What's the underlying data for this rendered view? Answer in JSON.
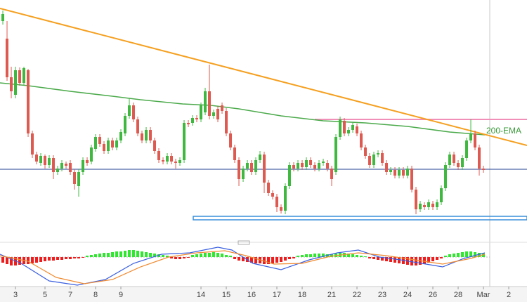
{
  "chart_data": {
    "type": "candlestick",
    "annotation": "200-EMA",
    "x": [
      0,
      1,
      2,
      3,
      4,
      5,
      6,
      7,
      8,
      9,
      10,
      11,
      12,
      13,
      14,
      15,
      16,
      17,
      18,
      19,
      20,
      21,
      22,
      23,
      24,
      25,
      26,
      27,
      28,
      29,
      30,
      31,
      32,
      33,
      34,
      35,
      36,
      37,
      38,
      39,
      40,
      41,
      42,
      43,
      44,
      45,
      46,
      47,
      48,
      49,
      50,
      51,
      52,
      53,
      54,
      55,
      56,
      57,
      58,
      59,
      60,
      61,
      62,
      63,
      64,
      65,
      66,
      67,
      68,
      69,
      70,
      71,
      72,
      73,
      74,
      75,
      76,
      77,
      78,
      79,
      80,
      81,
      82,
      83,
      84,
      85,
      86,
      87,
      88,
      89,
      90,
      91,
      92,
      93,
      94,
      95,
      96,
      97,
      98,
      99,
      100,
      101,
      102,
      103,
      104,
      105,
      106,
      107,
      108,
      109,
      110,
      111,
      112,
      113,
      114
    ],
    "open": [
      300,
      275,
      220,
      195,
      230,
      212,
      230,
      140,
      110,
      98,
      108,
      95,
      105,
      85,
      90,
      97,
      98,
      85,
      65,
      85,
      102,
      100,
      118,
      135,
      125,
      115,
      130,
      120,
      130,
      140,
      165,
      180,
      160,
      140,
      130,
      145,
      130,
      115,
      102,
      100,
      108,
      100,
      98,
      102,
      155,
      155,
      162,
      160,
      170,
      200,
      165,
      175,
      180,
      172,
      140,
      120,
      102,
      75,
      90,
      98,
      85,
      102,
      110,
      70,
      55,
      50,
      35,
      30,
      65,
      95,
      90,
      98,
      92,
      102,
      95,
      90,
      98,
      98,
      90,
      85,
      135,
      158,
      140,
      145,
      150,
      140,
      120,
      108,
      95,
      110,
      112,
      98,
      85,
      88,
      80,
      88,
      80,
      90,
      60,
      32,
      38,
      35,
      40,
      35,
      42,
      62,
      95,
      110,
      98,
      92,
      105,
      130,
      140,
      120,
      90
    ],
    "close": [
      310,
      220,
      200,
      230,
      212,
      233,
      140,
      110,
      100,
      108,
      95,
      105,
      85,
      90,
      98,
      94,
      85,
      68,
      85,
      102,
      98,
      120,
      135,
      125,
      115,
      130,
      120,
      130,
      142,
      165,
      180,
      160,
      140,
      130,
      145,
      130,
      115,
      102,
      100,
      108,
      100,
      98,
      102,
      155,
      153,
      162,
      160,
      180,
      200,
      165,
      170,
      160,
      172,
      140,
      120,
      102,
      75,
      90,
      98,
      85,
      102,
      110,
      70,
      55,
      50,
      35,
      30,
      65,
      95,
      90,
      98,
      92,
      102,
      95,
      90,
      98,
      100,
      90,
      75,
      135,
      160,
      140,
      145,
      152,
      140,
      120,
      108,
      95,
      110,
      112,
      98,
      85,
      88,
      80,
      88,
      80,
      90,
      60,
      32,
      40,
      35,
      42,
      35,
      42,
      62,
      95,
      110,
      98,
      92,
      105,
      130,
      140,
      120,
      90,
      88
    ],
    "high": [
      315,
      300,
      235,
      235,
      234,
      235,
      232,
      144,
      114,
      112,
      110,
      109,
      109,
      94,
      102,
      100,
      102,
      89,
      89,
      106,
      106,
      124,
      139,
      139,
      129,
      134,
      134,
      134,
      146,
      169,
      190,
      184,
      164,
      144,
      149,
      149,
      134,
      119,
      106,
      112,
      112,
      104,
      106,
      159,
      159,
      166,
      166,
      184,
      205,
      238,
      174,
      179,
      184,
      176,
      144,
      124,
      106,
      94,
      102,
      102,
      106,
      115,
      114,
      74,
      59,
      54,
      39,
      69,
      99,
      99,
      102,
      102,
      106,
      106,
      99,
      102,
      104,
      102,
      94,
      139,
      164,
      162,
      149,
      156,
      154,
      144,
      124,
      112,
      114,
      116,
      116,
      102,
      92,
      92,
      92,
      92,
      94,
      94,
      64,
      44,
      42,
      46,
      44,
      46,
      66,
      99,
      114,
      114,
      102,
      109,
      134,
      160,
      144,
      124,
      94
    ],
    "low": [
      295,
      215,
      190,
      190,
      208,
      208,
      135,
      105,
      96,
      94,
      90,
      91,
      75,
      81,
      86,
      90,
      81,
      60,
      50,
      81,
      94,
      96,
      114,
      121,
      111,
      111,
      116,
      116,
      126,
      136,
      161,
      156,
      136,
      126,
      126,
      126,
      111,
      98,
      96,
      96,
      96,
      90,
      94,
      98,
      149,
      151,
      156,
      156,
      166,
      160,
      161,
      156,
      168,
      136,
      116,
      98,
      65,
      71,
      86,
      81,
      81,
      98,
      55,
      51,
      46,
      28,
      26,
      25,
      61,
      86,
      86,
      88,
      88,
      91,
      86,
      86,
      94,
      86,
      65,
      81,
      131,
      136,
      136,
      141,
      136,
      116,
      104,
      91,
      91,
      106,
      94,
      81,
      81,
      76,
      76,
      76,
      76,
      56,
      25,
      28,
      31,
      31,
      31,
      31,
      38,
      58,
      91,
      94,
      88,
      88,
      101,
      126,
      116,
      80,
      84
    ],
    "colors": {
      "up": "#3fb83f",
      "down": "#de5a50"
    },
    "xlim": [
      -0.67,
      124.33
    ],
    "ylim": [
      5,
      330
    ],
    "xticks": [
      3,
      {
        "value": 10,
        "label": "5"
      },
      {
        "value": 16,
        "label": "7"
      },
      {
        "value": 22,
        "label": "8"
      },
      {
        "value": 28,
        "label": "9"
      },
      {
        "value": 47,
        "label": "14"
      },
      {
        "value": 53,
        "label": "15"
      },
      {
        "value": 59,
        "label": "16"
      },
      {
        "value": 65,
        "label": "17"
      },
      {
        "value": 71,
        "label": "18"
      },
      {
        "value": 78,
        "label": "21"
      },
      {
        "value": 84,
        "label": "22"
      },
      {
        "value": 90,
        "label": "23"
      },
      {
        "value": 96,
        "label": "24"
      },
      {
        "value": 102,
        "label": "26"
      },
      {
        "value": 108,
        "label": "28"
      },
      {
        "value": 114,
        "label": "Mar"
      },
      {
        "value": 120,
        "label": "2"
      }
    ],
    "oscillator": {
      "values": [
        -8,
        -10,
        -12,
        -12,
        -11,
        -10,
        -10,
        -9,
        -8,
        -7,
        -6,
        -5,
        -5,
        -4,
        -4,
        -3,
        -3,
        -2,
        -2,
        -1,
        2,
        3,
        4,
        5,
        6,
        6,
        7,
        8,
        8,
        9,
        10,
        10,
        9,
        8,
        7,
        6,
        5,
        4,
        3,
        2,
        -2,
        -3,
        -3,
        -2,
        -1,
        3,
        4,
        5,
        6,
        6,
        7,
        6,
        5,
        3,
        2,
        -3,
        -5,
        -6,
        -7,
        -8,
        -9,
        -9,
        -10,
        -10,
        -9,
        -8,
        -7,
        -5,
        -3,
        -2,
        2,
        3,
        4,
        4,
        5,
        5,
        5,
        4,
        4,
        5,
        6,
        6,
        5,
        4,
        3,
        2,
        1,
        -2,
        -3,
        -4,
        -5,
        -6,
        -7,
        -8,
        -9,
        -10,
        -11,
        -12,
        -12,
        -11,
        -10,
        -8,
        -6,
        -4,
        -2,
        2,
        4,
        5,
        6,
        7,
        8,
        8,
        7,
        6,
        5
      ],
      "colors": {
        "up": "#2ee82e",
        "down": "#ee1c1c"
      }
    }
  }
}
